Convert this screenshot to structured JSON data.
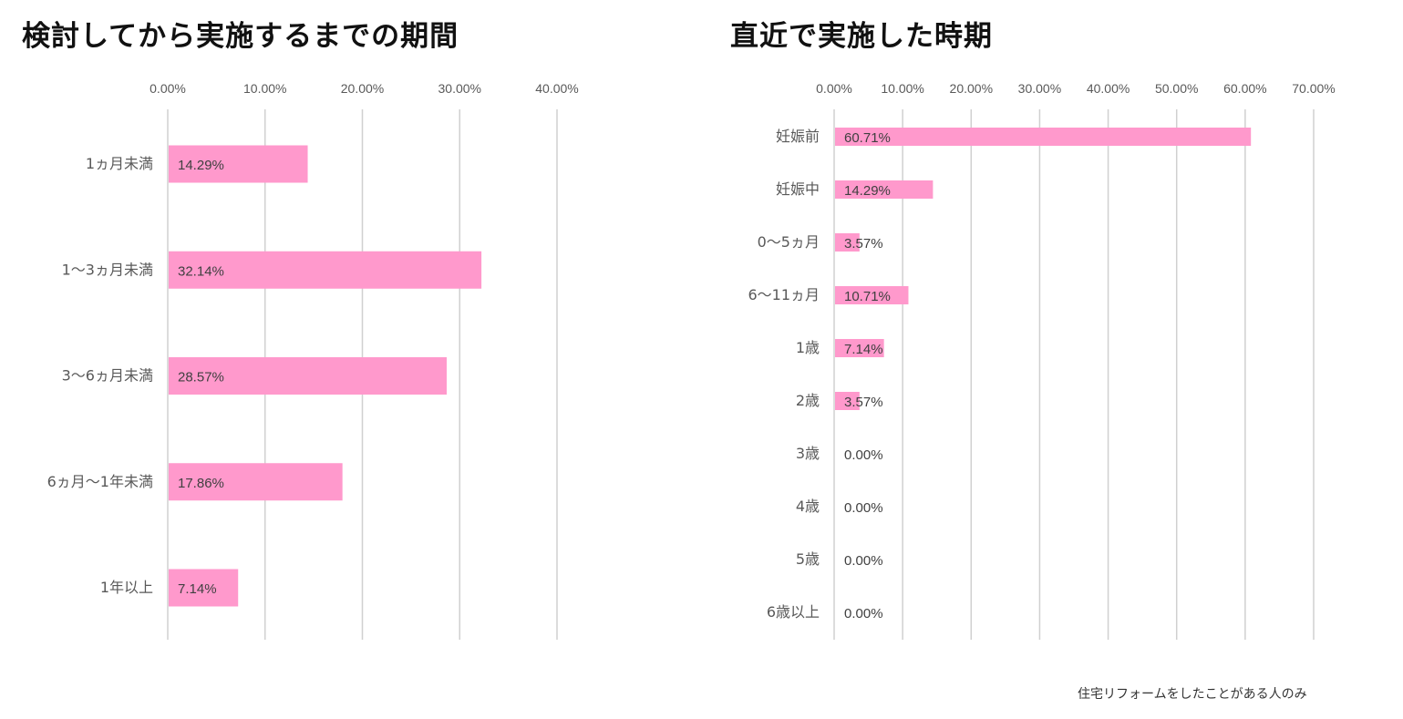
{
  "chart_data": [
    {
      "type": "bar",
      "orientation": "horizontal",
      "title": "検討してから実施するまでの期間",
      "categories": [
        "1ヵ月未満",
        "1〜3ヵ月未満",
        "3〜6ヵ月未満",
        "6ヵ月〜1年未満",
        "1年以上"
      ],
      "values": [
        14.29,
        32.14,
        28.57,
        17.86,
        7.14
      ],
      "data_labels": [
        "14.29%",
        "32.14%",
        "28.57%",
        "17.86%",
        "7.14%"
      ],
      "xlim": [
        0,
        40
      ],
      "x_ticks": [
        "0.00%",
        "10.00%",
        "20.00%",
        "30.00%",
        "40.00%"
      ],
      "grid": true,
      "color": "#ff99cc"
    },
    {
      "type": "bar",
      "orientation": "horizontal",
      "title": "直近で実施した時期",
      "categories": [
        "妊娠前",
        "妊娠中",
        "0〜5ヵ月",
        "6〜11ヵ月",
        "1歳",
        "2歳",
        "3歳",
        "4歳",
        "5歳",
        "6歳以上"
      ],
      "values": [
        60.71,
        14.29,
        3.57,
        10.71,
        7.14,
        3.57,
        0,
        0,
        0,
        0
      ],
      "data_labels": [
        "60.71%",
        "14.29%",
        "3.57%",
        "10.71%",
        "7.14%",
        "3.57%",
        "0.00%",
        "0.00%",
        "0.00%",
        "0.00%"
      ],
      "xlim": [
        0,
        70
      ],
      "x_ticks": [
        "0.00%",
        "10.00%",
        "20.00%",
        "30.00%",
        "40.00%",
        "50.00%",
        "60.00%",
        "70.00%"
      ],
      "grid": true,
      "color": "#ff99cc"
    }
  ],
  "footnote": "住宅リフォームをしたことがある人のみ"
}
